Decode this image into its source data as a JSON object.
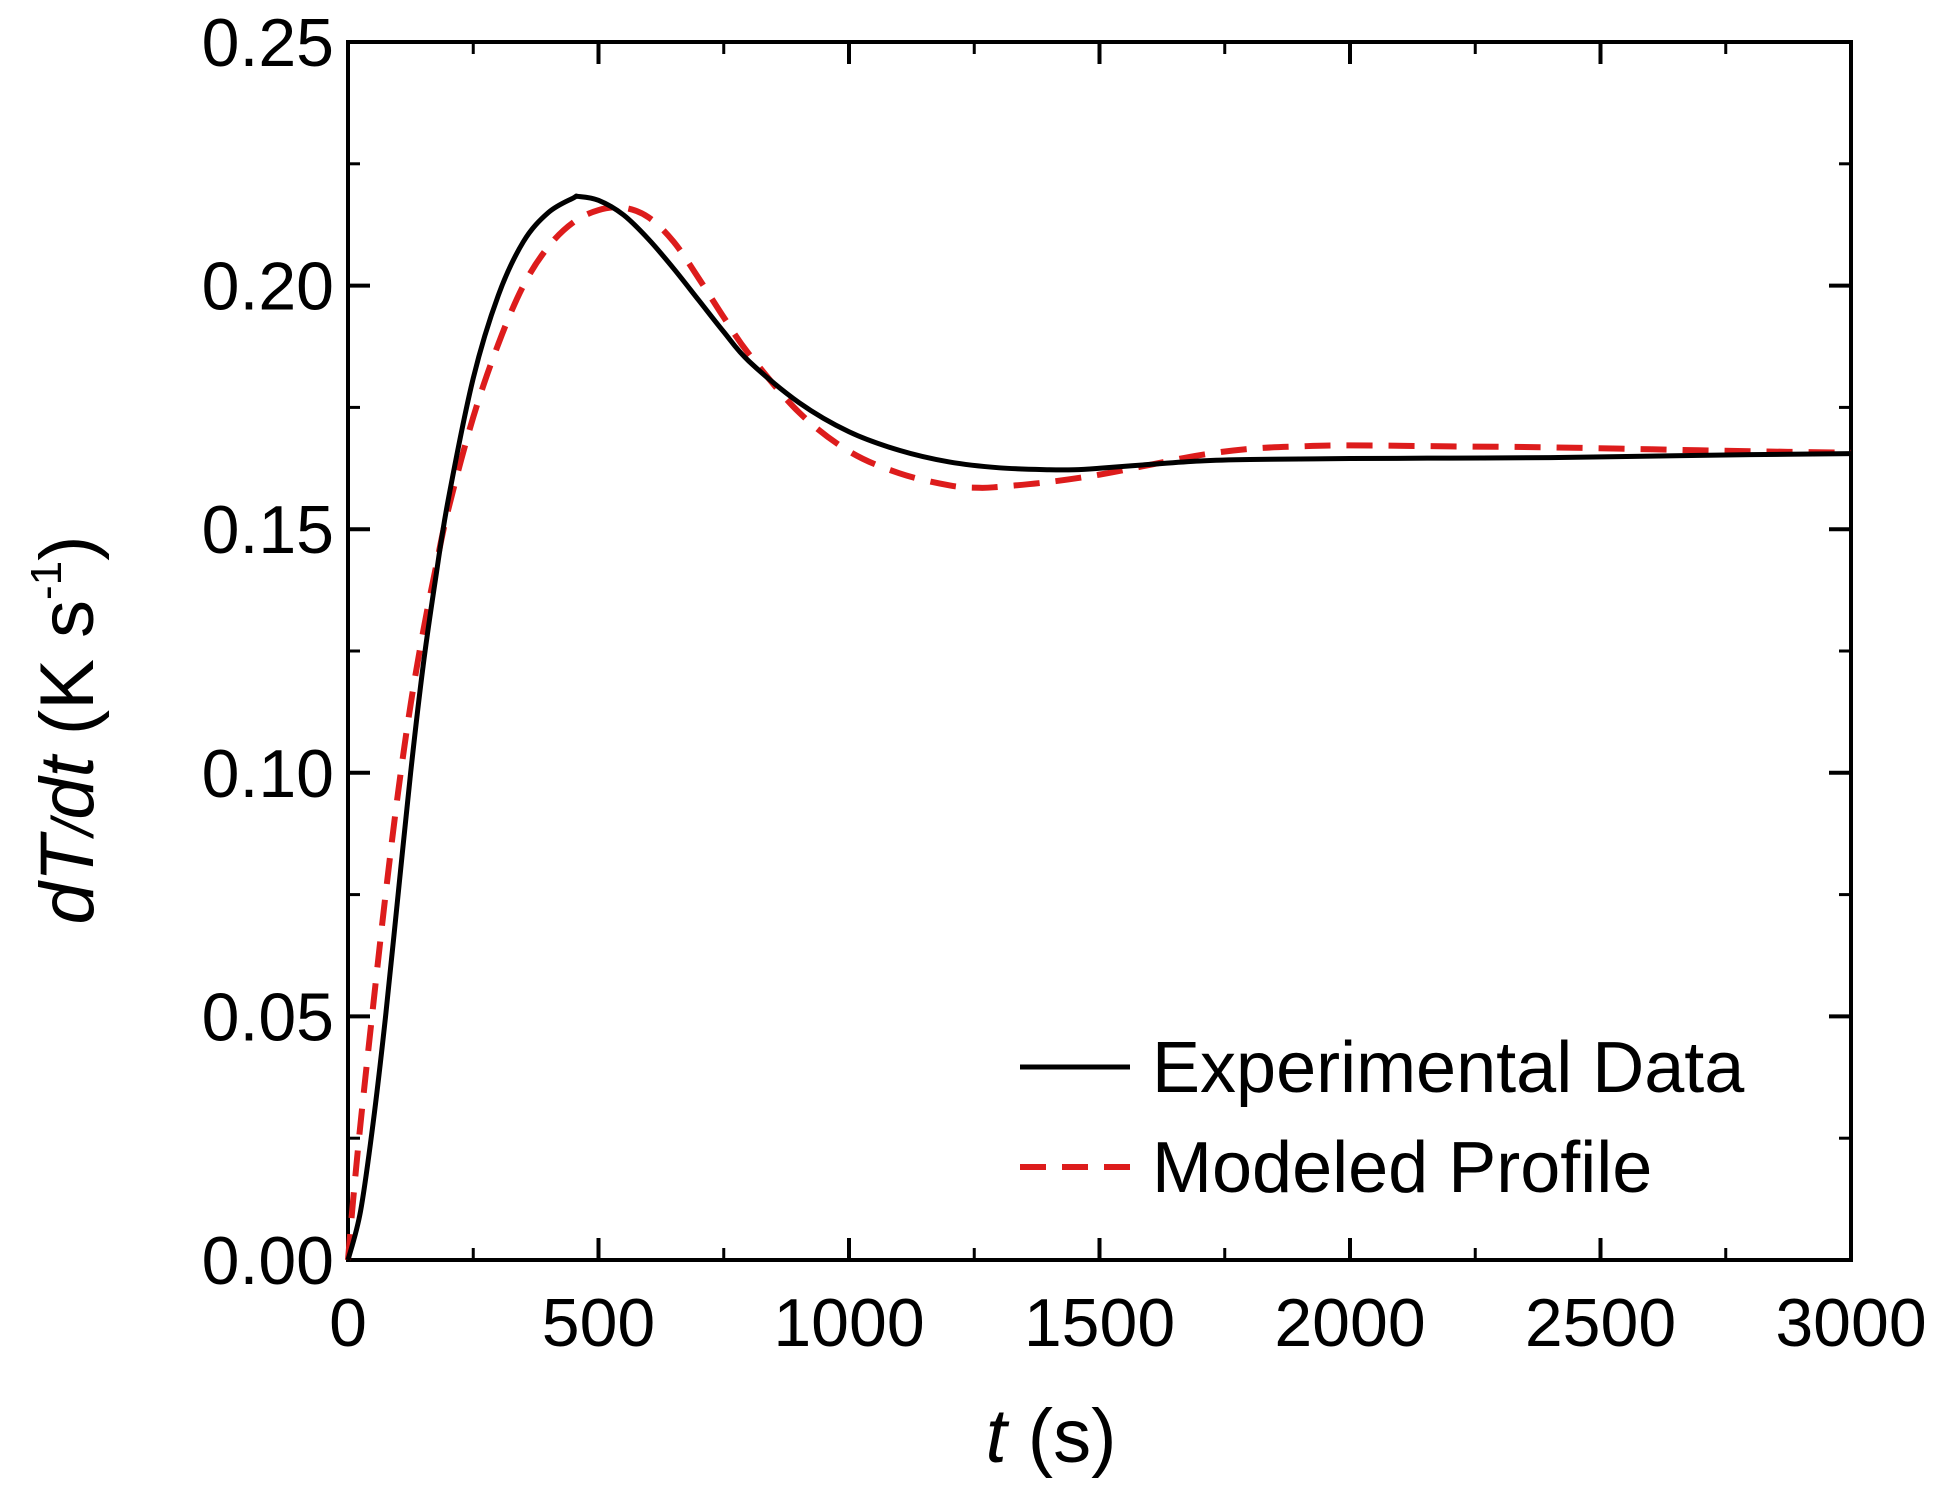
{
  "chart_data": {
    "type": "line",
    "title": "",
    "xlabel": {
      "var": "t",
      "unit": " (s)"
    },
    "ylabel": {
      "d1": "d",
      "T": "T",
      "slash": "/",
      "d2": "d",
      "t": "t",
      "unit_pre": " (K s",
      "exp": "-1",
      "unit_post": ")"
    },
    "xlim": [
      0,
      3000
    ],
    "ylim": [
      0,
      0.25
    ],
    "x_ticks": [
      0,
      500,
      1000,
      1500,
      2000,
      2500,
      3000
    ],
    "x_tick_labels": [
      "0",
      "500",
      "1000",
      "1500",
      "2000",
      "2500",
      "3000"
    ],
    "y_ticks": [
      0,
      0.05,
      0.1,
      0.15,
      0.2,
      0.25
    ],
    "y_tick_labels": [
      "0.00",
      "0.05",
      "0.10",
      "0.15",
      "0.20",
      "0.25"
    ],
    "grid": false,
    "legend_position": "bottom-right",
    "series": [
      {
        "name": "Experimental Data",
        "style": "solid",
        "color": "#000000",
        "x": [
          0,
          25,
          50,
          75,
          100,
          125,
          150,
          175,
          200,
          250,
          300,
          350,
          400,
          450,
          460,
          500,
          550,
          600,
          650,
          700,
          750,
          800,
          900,
          1000,
          1100,
          1200,
          1300,
          1400,
          1450,
          1500,
          1600,
          1700,
          1800,
          2000,
          2200,
          2400,
          2600,
          2800,
          3000
        ],
        "y": [
          0.0,
          0.01,
          0.028,
          0.05,
          0.075,
          0.1,
          0.122,
          0.14,
          0.156,
          0.181,
          0.198,
          0.209,
          0.215,
          0.218,
          0.2183,
          0.2175,
          0.2145,
          0.2095,
          0.2035,
          0.197,
          0.1905,
          0.1845,
          0.176,
          0.17,
          0.1662,
          0.1638,
          0.1626,
          0.1622,
          0.1622,
          0.1625,
          0.1633,
          0.164,
          0.1643,
          0.1645,
          0.1646,
          0.1647,
          0.165,
          0.1653,
          0.1655
        ]
      },
      {
        "name": "Modeled Profile",
        "style": "dashed",
        "color": "#dd1c1c",
        "x": [
          0,
          10,
          25,
          50,
          75,
          100,
          125,
          150,
          175,
          200,
          250,
          300,
          350,
          400,
          450,
          500,
          550,
          600,
          650,
          700,
          750,
          800,
          900,
          1000,
          1100,
          1200,
          1260,
          1300,
          1400,
          1500,
          1600,
          1700,
          1800,
          1900,
          2000,
          2200,
          2400,
          2600,
          2800,
          3000
        ],
        "y": [
          0.0,
          0.012,
          0.028,
          0.052,
          0.075,
          0.096,
          0.114,
          0.129,
          0.142,
          0.154,
          0.173,
          0.188,
          0.2,
          0.208,
          0.213,
          0.2155,
          0.216,
          0.214,
          0.209,
          0.2015,
          0.1935,
          0.186,
          0.174,
          0.166,
          0.1615,
          0.159,
          0.1585,
          0.1587,
          0.1597,
          0.1612,
          0.1632,
          0.1652,
          0.1665,
          0.167,
          0.1672,
          0.167,
          0.1668,
          0.1664,
          0.166,
          0.1657
        ]
      }
    ]
  }
}
